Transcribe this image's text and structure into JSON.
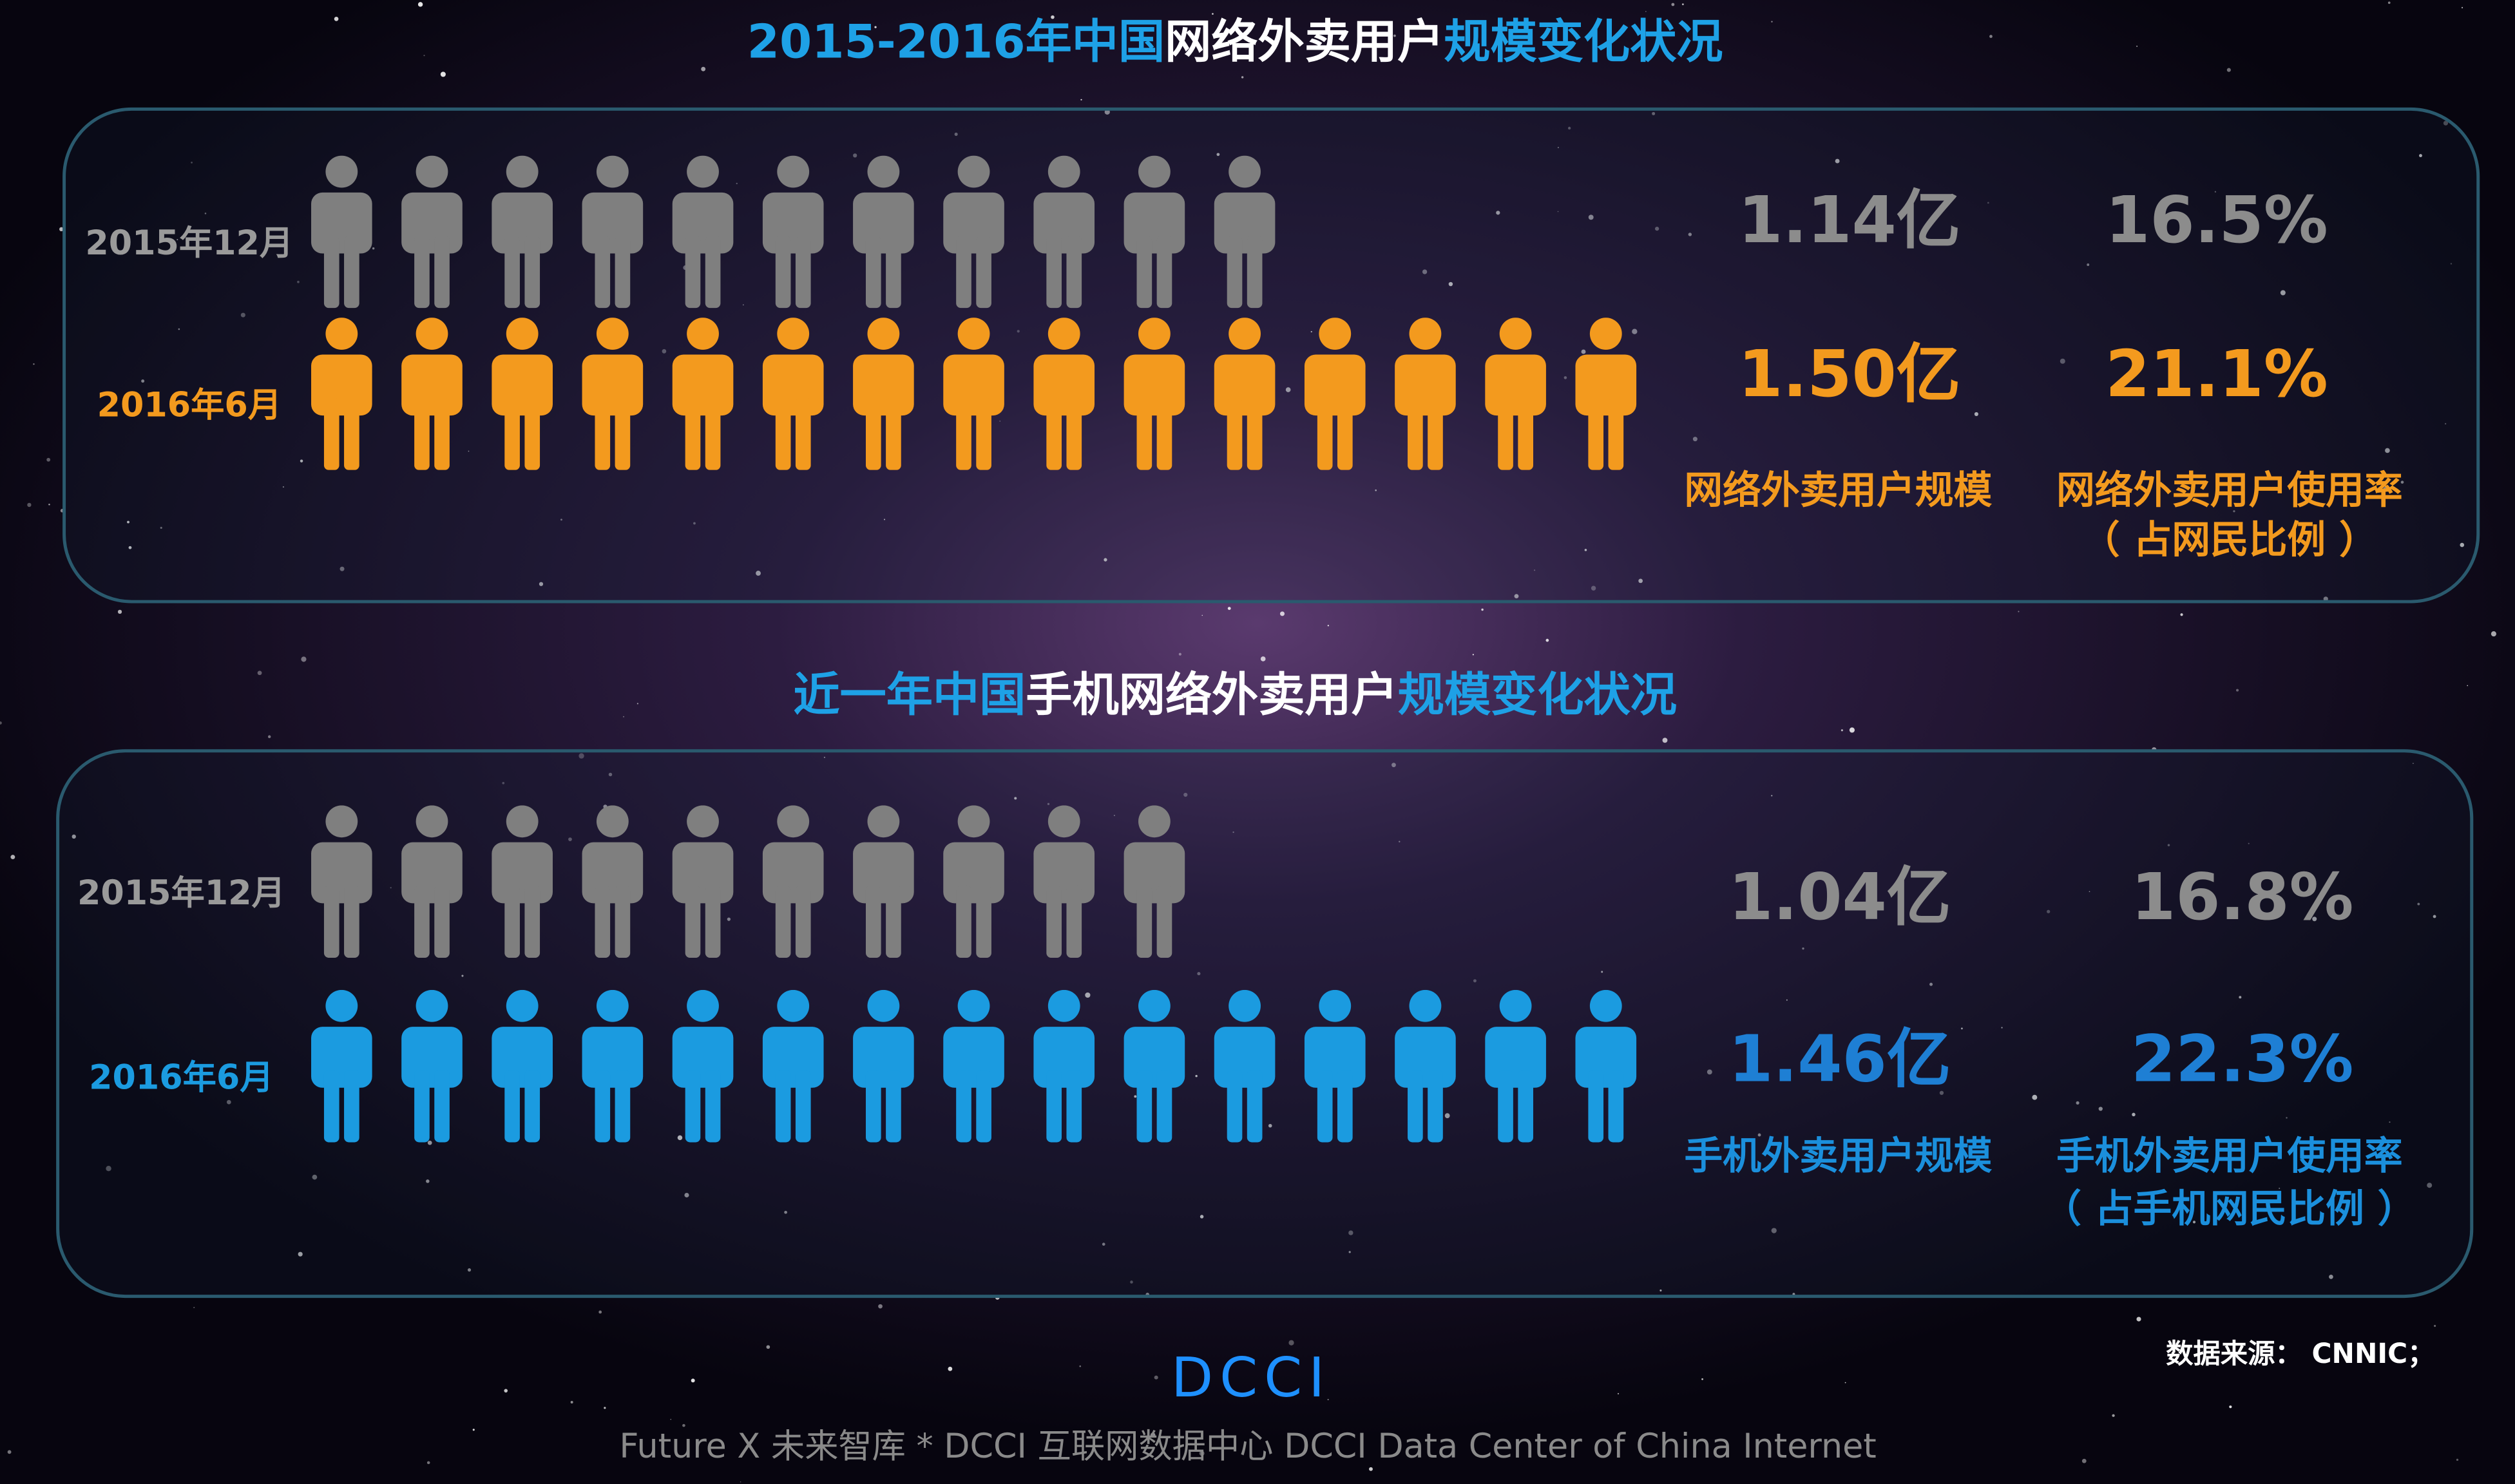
{
  "panels": [
    {
      "title_parts": [
        {
          "text": "2015-2016年中国",
          "color": "#1ea1e6"
        },
        {
          "text": "网络外卖用户",
          "color": "#ffffff"
        },
        {
          "text": "规模变化状况",
          "color": "#1ea1e6"
        }
      ],
      "rows": [
        {
          "label": "2015年12月",
          "icons": 11,
          "color": "#7f7f7f",
          "label_color": "#9a9a9a",
          "scale": "1.14亿",
          "rate": "16.5%",
          "value_color": "#8c8c8c"
        },
        {
          "label": "2016年6月",
          "icons": 15,
          "color": "#f39a1e",
          "label_color": "#f39a1e",
          "scale": "1.50亿",
          "rate": "21.1%",
          "value_color": "#f39a1e"
        }
      ],
      "captions": [
        "网络外卖用户规模",
        "网络外卖用户使用率",
        "（ 占网民比例 ）"
      ],
      "caption_color": "#f39a1e"
    },
    {
      "title_parts": [
        {
          "text": "近一年中国",
          "color": "#1ea1e6"
        },
        {
          "text": "手机网络外卖用户",
          "color": "#ffffff"
        },
        {
          "text": "规模变化状况",
          "color": "#1ea1e6"
        }
      ],
      "rows": [
        {
          "label": "2015年12月",
          "icons": 10,
          "color": "#7f7f7f",
          "label_color": "#9a9a9a",
          "scale": "1.04亿",
          "rate": "16.8%",
          "value_color": "#8c8c8c"
        },
        {
          "label": "2016年6月",
          "icons": 15,
          "color": "#1b9be0",
          "label_color": "#1b9be0",
          "scale": "1.46亿",
          "rate": "22.3%",
          "value_color": "#1e7fd4"
        }
      ],
      "captions": [
        "手机外卖用户规模",
        "手机外卖用户使用率",
        "（ 占手机网民比例 ）"
      ],
      "caption_color": "#1b8fdc"
    }
  ],
  "source": "数据来源： CNNIC；",
  "logo": "DCCI",
  "footer": "Future X 未来智库 * DCCI 互联网数据中心 DCCI Data Center of China Internet"
}
